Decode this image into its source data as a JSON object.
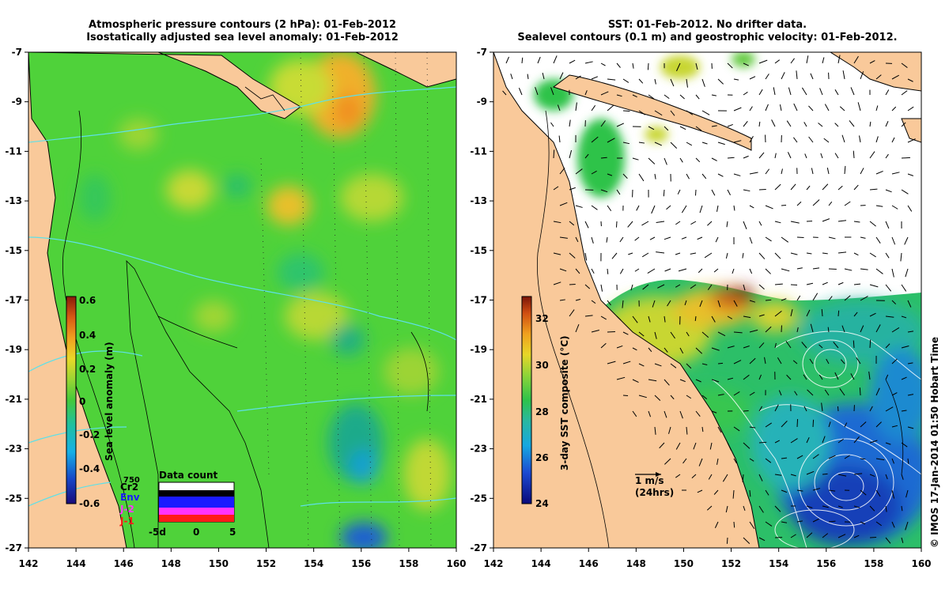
{
  "left_panel": {
    "title_line1": "Atmospheric pressure contours (2 hPa): 01-Feb-2012",
    "title_line2": "Isostatically adjusted sea level anomaly: 01-Feb-2012",
    "colorbar": {
      "label": "Sea level anomaly (m)",
      "ticks": [
        "0.6",
        "0.4",
        "0.2",
        "0",
        "-0.2",
        "-0.4",
        "-0.6"
      ],
      "range": [
        -0.6,
        0.6
      ]
    },
    "data_count": {
      "title": "Data count",
      "max_label": "750",
      "x_ticks": [
        "-5d",
        "0",
        "5"
      ],
      "legend": [
        {
          "label": "Cr2",
          "color": "#000000"
        },
        {
          "label": "Env",
          "color": "#1a1aff"
        },
        {
          "label": "J-2",
          "color": "#ff33ff"
        },
        {
          "label": "J-1",
          "color": "#ff1a1a"
        }
      ]
    }
  },
  "right_panel": {
    "title_line1": "SST: 01-Feb-2012. No drifter data.",
    "title_line2": "Sealevel contours (0.1 m) and geostrophic velocity: 01-Feb-2012.",
    "colorbar": {
      "label": "3-day SST composite (°C)",
      "ticks": [
        "32",
        "30",
        "28",
        "26",
        "24"
      ],
      "range": [
        24,
        33
      ]
    },
    "velocity_scale": {
      "line1": "1 m/s",
      "line2": "(24hrs)"
    }
  },
  "axes": {
    "x_ticks": [
      "142",
      "144",
      "146",
      "148",
      "150",
      "152",
      "154",
      "156",
      "158",
      "160"
    ],
    "y_ticks": [
      "-7",
      "-9",
      "-11",
      "-13",
      "-15",
      "-17",
      "-19",
      "-21",
      "-23",
      "-25",
      "-27"
    ],
    "lon_range": [
      142,
      160
    ],
    "lat_range": [
      -27,
      -7
    ]
  },
  "copyright": "© IMOS 17-Jan-2014 01:50 Hobart Time",
  "colors": {
    "land": "#f9c99a",
    "sla_base": "#4fd23a",
    "cyan_contour": "#5ee0e8",
    "coast": "#000000"
  }
}
